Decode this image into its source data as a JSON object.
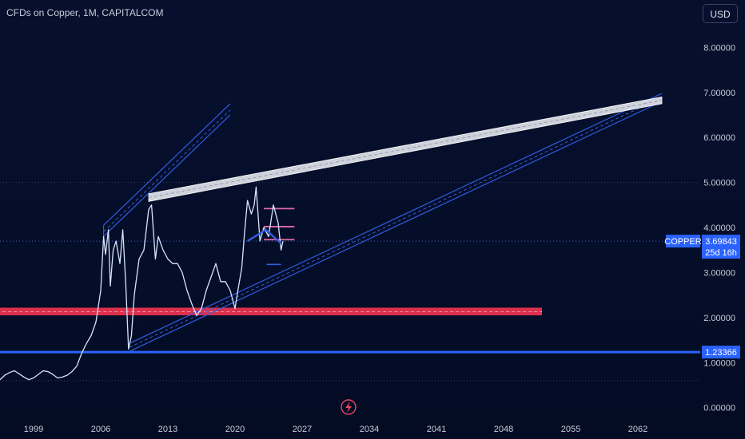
{
  "header": {
    "title": "CFDs on Copper, 1M, CAPITALCOM",
    "currency": "USD"
  },
  "colors": {
    "price": "#d7e4ff",
    "channel": "#2f5de0",
    "resistance": "#e6e8ee",
    "support_zone": "#e8334f",
    "hline": "#2962ff",
    "background": "#050f2a"
  },
  "chart_data": {
    "type": "line",
    "title": "CFDs on Copper, 1M, CAPITALCOM",
    "xlabel": "",
    "ylabel": "",
    "xlim": [
      1995.5,
      2068.5
    ],
    "ylim": [
      -0.2,
      8.45
    ],
    "y_ticks": [
      "8.00000",
      "7.00000",
      "6.00000",
      "5.00000",
      "4.00000",
      "3.00000",
      "2.00000",
      "1.00000",
      "0.00000"
    ],
    "y_tick_values": [
      8,
      7,
      6,
      5,
      4,
      3,
      2,
      1,
      0
    ],
    "x_ticks": [
      "1999",
      "2006",
      "2013",
      "2020",
      "2027",
      "2034",
      "2041",
      "2048",
      "2055",
      "2062"
    ],
    "x_tick_values": [
      1999,
      2006,
      2013,
      2020,
      2027,
      2034,
      2041,
      2048,
      2055,
      2062
    ],
    "series": [
      {
        "values": [
          [
            1995.5,
            0.62
          ],
          [
            1996,
            0.72
          ],
          [
            1996.5,
            0.78
          ],
          [
            1997,
            0.82
          ],
          [
            1997.5,
            0.75
          ],
          [
            1998,
            0.68
          ],
          [
            1998.5,
            0.62
          ],
          [
            1999,
            0.66
          ],
          [
            1999.5,
            0.74
          ],
          [
            2000,
            0.82
          ],
          [
            2000.5,
            0.8
          ],
          [
            2001,
            0.74
          ],
          [
            2001.5,
            0.66
          ],
          [
            2002,
            0.68
          ],
          [
            2002.5,
            0.72
          ],
          [
            2003,
            0.8
          ],
          [
            2003.5,
            0.92
          ],
          [
            2004,
            1.2
          ],
          [
            2004.5,
            1.42
          ],
          [
            2005,
            1.6
          ],
          [
            2005.5,
            1.9
          ],
          [
            2006,
            2.6
          ],
          [
            2006.3,
            3.8
          ],
          [
            2006.5,
            3.4
          ],
          [
            2006.8,
            3.95
          ],
          [
            2007,
            2.7
          ],
          [
            2007.3,
            3.5
          ],
          [
            2007.6,
            3.7
          ],
          [
            2008,
            3.2
          ],
          [
            2008.3,
            3.95
          ],
          [
            2008.6,
            2.8
          ],
          [
            2008.9,
            1.3
          ],
          [
            2009.2,
            1.6
          ],
          [
            2009.5,
            2.5
          ],
          [
            2010,
            3.3
          ],
          [
            2010.5,
            3.5
          ],
          [
            2011,
            4.4
          ],
          [
            2011.3,
            4.5
          ],
          [
            2011.7,
            3.3
          ],
          [
            2012,
            3.8
          ],
          [
            2012.5,
            3.5
          ],
          [
            2013,
            3.3
          ],
          [
            2013.5,
            3.2
          ],
          [
            2014,
            3.2
          ],
          [
            2014.5,
            3.0
          ],
          [
            2015,
            2.6
          ],
          [
            2015.5,
            2.3
          ],
          [
            2016,
            2.05
          ],
          [
            2016.5,
            2.2
          ],
          [
            2017,
            2.6
          ],
          [
            2017.5,
            2.9
          ],
          [
            2018,
            3.2
          ],
          [
            2018.5,
            2.8
          ],
          [
            2019,
            2.8
          ],
          [
            2019.5,
            2.6
          ],
          [
            2020,
            2.2
          ],
          [
            2020.3,
            2.6
          ],
          [
            2020.7,
            3.1
          ],
          [
            2021,
            3.9
          ],
          [
            2021.3,
            4.6
          ],
          [
            2021.7,
            4.3
          ],
          [
            2022,
            4.5
          ],
          [
            2022.2,
            4.9
          ],
          [
            2022.6,
            3.7
          ],
          [
            2023,
            4.0
          ],
          [
            2023.5,
            3.8
          ],
          [
            2024,
            4.5
          ],
          [
            2024.5,
            4.1
          ],
          [
            2024.8,
            3.5
          ],
          [
            2025,
            3.7
          ]
        ]
      }
    ],
    "last_price": {
      "symbol": "COPPER",
      "value": 3.69843,
      "label": "3.69843",
      "countdown": "25d 16h"
    },
    "horizontal_line": {
      "value": 1.23366,
      "label": "1.23366"
    },
    "support_zone": {
      "y_low": 2.05,
      "y_high": 2.22
    },
    "resistance_band": {
      "x1": 2011,
      "y1_top": 4.75,
      "y1_bot": 4.58,
      "x2": 2064.5,
      "y2_top": 6.9,
      "y2_bot": 6.75
    },
    "channel_upper": {
      "x1": 2006.3,
      "y1": 4.05,
      "x2": 2019.5,
      "y2": 6.75
    },
    "channel_lower": {
      "x1": 2009,
      "y1": 1.25,
      "x2": 2064.5,
      "y2": 6.8
    },
    "grid": false
  }
}
